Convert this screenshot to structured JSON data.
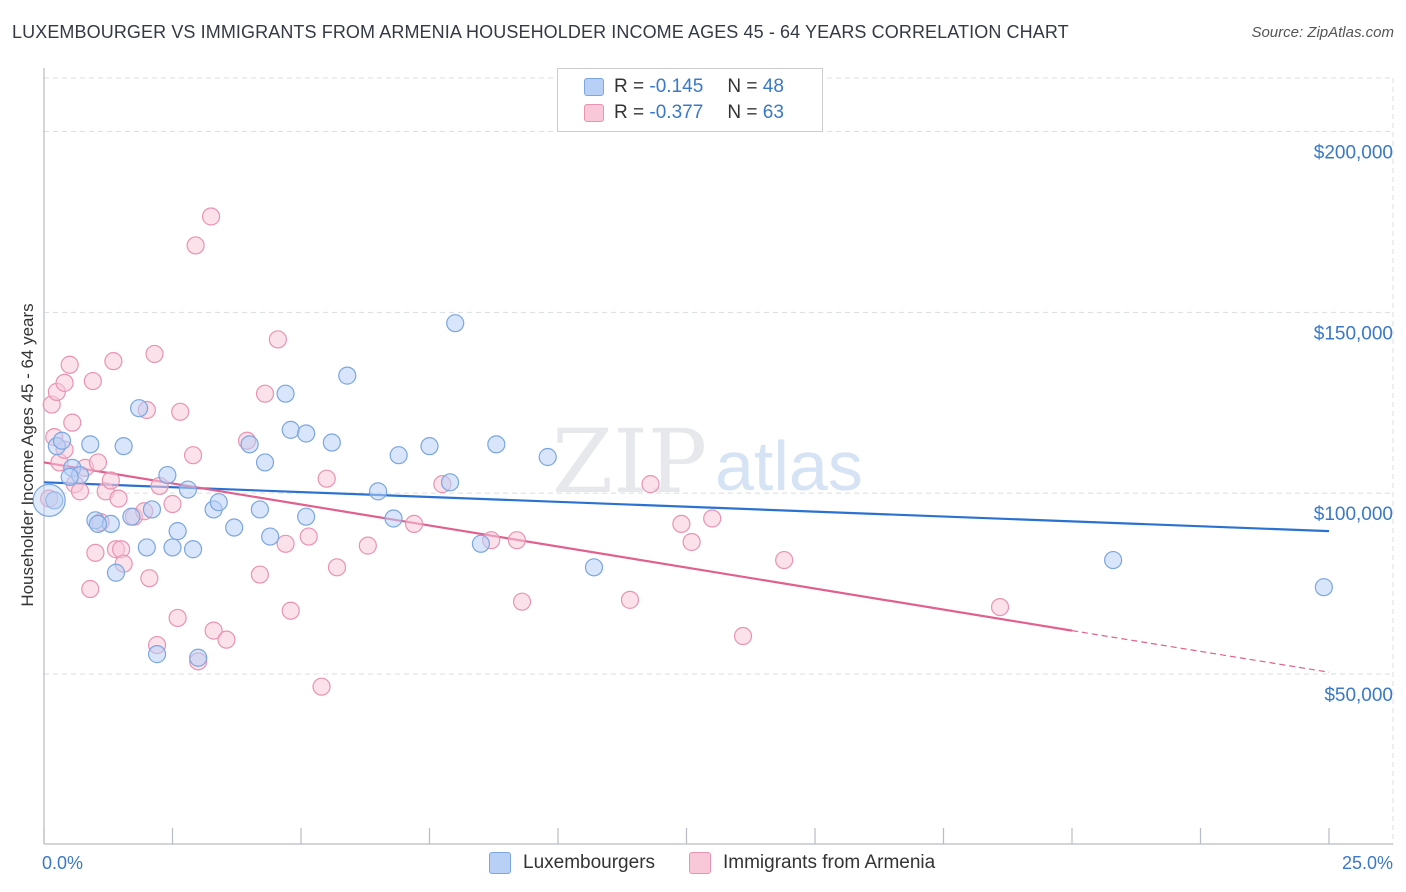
{
  "header": {
    "title": "LUXEMBOURGER VS IMMIGRANTS FROM ARMENIA HOUSEHOLDER INCOME AGES 45 - 64 YEARS CORRELATION CHART",
    "source": "Source: ZipAtlas.com"
  },
  "legend": {
    "rows": [
      {
        "r_label": "R =",
        "r_value": "-0.145",
        "n_label": "N =",
        "n_value": "48"
      },
      {
        "r_label": "R =",
        "r_value": "-0.377",
        "n_label": "N =",
        "n_value": "63"
      }
    ]
  },
  "bottom_legend": {
    "series1": "Luxembourgers",
    "series2": "Immigrants from Armenia"
  },
  "watermark": {
    "zip": "ZIP",
    "atlas": "atlas"
  },
  "colors": {
    "blue_fill": "#b8d0f5",
    "blue_stroke": "#7ba6e0",
    "blue_line": "#2b72d0",
    "pink_fill": "#f8c8d8",
    "pink_stroke": "#e993b2",
    "pink_line": "#e0608e",
    "tick_text": "#3a78c9",
    "grid": "#d8dde6"
  },
  "chart_data": {
    "type": "scatter",
    "title": "LUXEMBOURGER VS IMMIGRANTS FROM ARMENIA HOUSEHOLDER INCOME AGES 45 - 64 YEARS CORRELATION CHART",
    "xlabel": "",
    "ylabel": "Householder Income Ages 45 - 64 years",
    "xlim": [
      0,
      25
    ],
    "ylim": [
      3000,
      217000
    ],
    "x_tick_labels": [
      {
        "value": 0,
        "label": "0.0%"
      },
      {
        "value": 25,
        "label": "25.0%"
      }
    ],
    "y_ticks": [
      {
        "value": 50000,
        "label": "$50,000"
      },
      {
        "value": 100000,
        "label": "$100,000"
      },
      {
        "value": 150000,
        "label": "$150,000"
      },
      {
        "value": 200000,
        "label": "$200,000"
      }
    ],
    "grid": true,
    "series": [
      {
        "name": "Luxembourgers",
        "r": -0.145,
        "n": 48,
        "trend": {
          "x": [
            0.0,
            25.0
          ],
          "y": [
            103000,
            89500
          ]
        },
        "points": [
          [
            0.2,
            98000
          ],
          [
            0.25,
            113000
          ],
          [
            0.35,
            114500
          ],
          [
            0.55,
            107000
          ],
          [
            0.7,
            105000
          ],
          [
            0.9,
            113500
          ],
          [
            1.0,
            92500
          ],
          [
            1.3,
            91500
          ],
          [
            1.4,
            78000
          ],
          [
            1.55,
            113000
          ],
          [
            1.7,
            93500
          ],
          [
            1.85,
            123500
          ],
          [
            2.0,
            85000
          ],
          [
            2.1,
            95500
          ],
          [
            2.2,
            55500
          ],
          [
            2.4,
            105000
          ],
          [
            2.5,
            85000
          ],
          [
            2.6,
            89500
          ],
          [
            2.8,
            101000
          ],
          [
            2.9,
            84500
          ],
          [
            3.0,
            54500
          ],
          [
            3.3,
            95500
          ],
          [
            3.4,
            97500
          ],
          [
            3.7,
            90500
          ],
          [
            4.0,
            113500
          ],
          [
            4.2,
            95500
          ],
          [
            4.3,
            108500
          ],
          [
            4.4,
            88000
          ],
          [
            4.7,
            127500
          ],
          [
            4.8,
            117500
          ],
          [
            5.1,
            93500
          ],
          [
            5.1,
            116500
          ],
          [
            5.6,
            114000
          ],
          [
            5.9,
            132500
          ],
          [
            6.5,
            100500
          ],
          [
            6.8,
            93000
          ],
          [
            6.9,
            110500
          ],
          [
            7.5,
            113000
          ],
          [
            7.9,
            103000
          ],
          [
            8.0,
            147000
          ],
          [
            8.5,
            86000
          ],
          [
            8.8,
            113500
          ],
          [
            9.8,
            110000
          ],
          [
            10.7,
            79500
          ],
          [
            20.8,
            81500
          ],
          [
            24.9,
            74000
          ],
          [
            0.5,
            104500
          ],
          [
            1.05,
            91500
          ]
        ]
      },
      {
        "name": "Immigrants from Armenia",
        "r": -0.377,
        "n": 63,
        "trend": {
          "x": [
            0.0,
            20.0
          ],
          "y": [
            108500,
            62000
          ]
        },
        "trend_dashed": {
          "x": [
            20.0,
            25.0
          ],
          "y": [
            62000,
            50500
          ]
        },
        "points": [
          [
            0.1,
            98500
          ],
          [
            0.15,
            124500
          ],
          [
            0.2,
            115500
          ],
          [
            0.25,
            128000
          ],
          [
            0.3,
            108500
          ],
          [
            0.4,
            112000
          ],
          [
            0.4,
            130500
          ],
          [
            0.5,
            135500
          ],
          [
            0.55,
            119500
          ],
          [
            0.6,
            102500
          ],
          [
            0.7,
            100500
          ],
          [
            0.8,
            107000
          ],
          [
            0.9,
            73500
          ],
          [
            0.95,
            131000
          ],
          [
            1.0,
            83500
          ],
          [
            1.05,
            108500
          ],
          [
            1.1,
            92000
          ],
          [
            1.2,
            100500
          ],
          [
            1.3,
            103500
          ],
          [
            1.35,
            136500
          ],
          [
            1.4,
            84500
          ],
          [
            1.45,
            98500
          ],
          [
            1.5,
            84500
          ],
          [
            1.55,
            80500
          ],
          [
            1.75,
            93500
          ],
          [
            1.95,
            95000
          ],
          [
            2.0,
            123000
          ],
          [
            2.05,
            76500
          ],
          [
            2.15,
            138500
          ],
          [
            2.2,
            58000
          ],
          [
            2.25,
            102000
          ],
          [
            2.5,
            97000
          ],
          [
            2.6,
            65500
          ],
          [
            2.65,
            122500
          ],
          [
            2.9,
            110500
          ],
          [
            2.95,
            168500
          ],
          [
            3.0,
            53500
          ],
          [
            3.25,
            176500
          ],
          [
            3.3,
            62000
          ],
          [
            3.55,
            59500
          ],
          [
            3.95,
            114500
          ],
          [
            4.2,
            77500
          ],
          [
            4.3,
            127500
          ],
          [
            4.55,
            142500
          ],
          [
            4.7,
            86000
          ],
          [
            4.8,
            67500
          ],
          [
            5.15,
            88000
          ],
          [
            5.4,
            46500
          ],
          [
            5.5,
            104000
          ],
          [
            5.7,
            79500
          ],
          [
            6.3,
            85500
          ],
          [
            7.2,
            91500
          ],
          [
            7.75,
            102500
          ],
          [
            8.7,
            87000
          ],
          [
            9.2,
            87000
          ],
          [
            9.3,
            70000
          ],
          [
            11.4,
            70500
          ],
          [
            11.8,
            102500
          ],
          [
            12.4,
            91500
          ],
          [
            12.6,
            86500
          ],
          [
            13.0,
            93000
          ],
          [
            13.6,
            60500
          ],
          [
            14.4,
            81500
          ]
        ]
      }
    ],
    "extra_points": {
      "Immigrants from Armenia": [
        [
          18.6,
          68500
        ]
      ]
    }
  }
}
